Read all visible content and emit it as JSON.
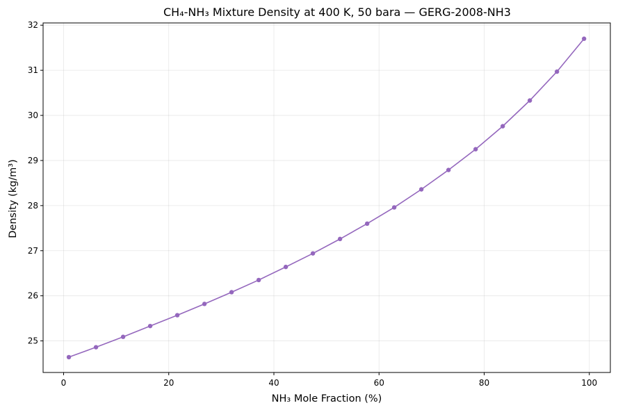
{
  "chart_data": {
    "type": "line",
    "title": "CH₄-NH₃ Mixture Density at 400 K, 50 bara — GERG-2008-NH3",
    "xlabel": "NH₃ Mole Fraction (%)",
    "ylabel": "Density (kg/m³)",
    "xlim": [
      -3.9,
      104.0
    ],
    "ylim": [
      24.3,
      32.05
    ],
    "xticks": [
      0,
      20,
      40,
      60,
      80,
      100
    ],
    "yticks": [
      25,
      26,
      27,
      28,
      29,
      30,
      31,
      32
    ],
    "xtick_labels": [
      "0",
      "20",
      "40",
      "60",
      "80",
      "100"
    ],
    "ytick_labels": [
      "25",
      "26",
      "27",
      "28",
      "29",
      "30",
      "31",
      "32"
    ],
    "grid": true,
    "color": "#9467bd",
    "marker": "circle",
    "series": [
      {
        "x": [
          1.0,
          6.16,
          11.32,
          16.47,
          21.63,
          26.79,
          31.95,
          37.11,
          42.26,
          47.42,
          52.58,
          57.74,
          62.89,
          68.05,
          73.21,
          78.37,
          83.53,
          88.68,
          93.84,
          99.0
        ],
        "values": [
          24.64,
          24.86,
          25.09,
          25.33,
          25.57,
          25.82,
          26.08,
          26.35,
          26.64,
          26.94,
          27.26,
          27.6,
          27.96,
          28.36,
          28.79,
          29.25,
          29.76,
          30.33,
          30.97,
          31.7
        ]
      }
    ]
  }
}
